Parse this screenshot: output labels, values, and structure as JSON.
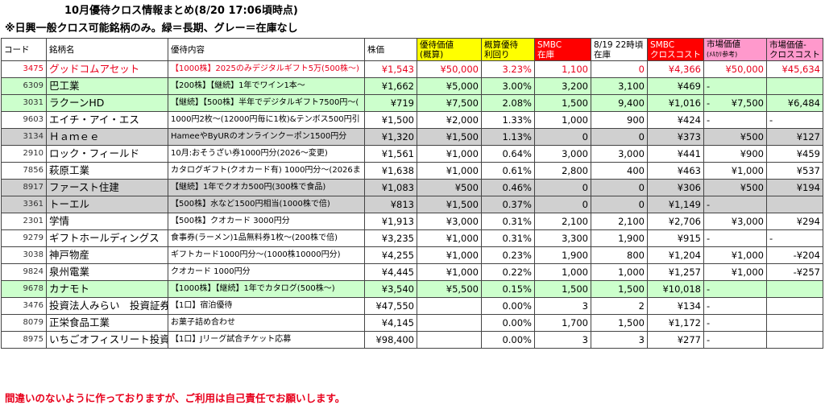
{
  "title": "10月優待クロス情報まとめ(8/20 17:06頃時点)",
  "subtitle": "※日興一般クロス可能銘柄のみ。緑＝長期、グレー＝在庫なし",
  "footer": "間違いのないように作っておりますが、ご利用は自己責任でお願いします。",
  "colors": {
    "green_row": "#ccffcc",
    "gray_row": "#d0d0d0",
    "yellow_header": "#ffff00",
    "red_header": "#ff0000",
    "pink_header": "#ff99cc",
    "red_text": "#e8001c"
  },
  "headers": {
    "code": "コード",
    "name": "銘柄名",
    "desc": "優待内容",
    "price": "株価",
    "value_l1": "優待価値",
    "value_l2": "(概算)",
    "yield_l1": "概算優待",
    "yield_l2": "利回り",
    "smbc_l1": "SMBC",
    "smbc_l2": "在庫",
    "stock0819_l1": "8/19 22時頃",
    "stock0819_l2": "在庫",
    "cost_l1": "SMBC",
    "cost_l2": "クロスコスト",
    "market_l1": "市場価値",
    "market_l2": "(ﾒﾙｶﾘ参考)",
    "diff_l1": "市場価値-",
    "diff_l2": "クロスコスト"
  },
  "rows": [
    {
      "style": "red",
      "code": "3475",
      "name": "グッドコムアセット",
      "desc": "【1000株】2025のみデジタルギフト5万(500株～)",
      "price": "¥1,543",
      "value": "¥50,000",
      "yield": "3.23%",
      "smbc": "1,100",
      "stock0819": "0",
      "cost": "¥4,366",
      "market": "¥50,000",
      "diff": "¥45,634"
    },
    {
      "style": "green",
      "code": "6309",
      "name": "巴工業",
      "desc": "【200株】【継続】1年でワイン1本～",
      "price": "¥1,662",
      "value": "¥5,000",
      "yield": "3.00%",
      "smbc": "3,200",
      "stock0819": "3,100",
      "cost": "¥469",
      "market": "-",
      "diff": ""
    },
    {
      "style": "green",
      "code": "3031",
      "name": "ラクーンHD",
      "desc": "【継続】【500株】半年でデジタルギフト7500円～(",
      "price": "¥719",
      "value": "¥7,500",
      "yield": "2.08%",
      "smbc": "1,500",
      "stock0819": "9,400",
      "cost": "¥1,016",
      "market": "-",
      "diff": "¥6,484",
      "market2": "¥7,500"
    },
    {
      "style": "",
      "code": "9603",
      "name": "エイチ・アイ・エス",
      "desc": "1000円2枚～(12000円毎に1枚)&テンボス500円引",
      "price": "¥1,500",
      "value": "¥2,000",
      "yield": "1.33%",
      "smbc": "1,000",
      "stock0819": "900",
      "cost": "¥424",
      "market": "-",
      "diff": "-"
    },
    {
      "style": "gray",
      "code": "3134",
      "name": "Ｈａｍｅｅ",
      "desc": "HameeやByURのオンラインクーポン1500円分",
      "price": "¥1,320",
      "value": "¥1,500",
      "yield": "1.13%",
      "smbc": "0",
      "stock0819": "0",
      "cost": "¥373",
      "market": "¥500",
      "diff": "¥127"
    },
    {
      "style": "",
      "code": "2910",
      "name": "ロック・フィールド",
      "desc": "10月:おそうざい券1000円分(2026～変更)",
      "price": "¥1,561",
      "value": "¥1,000",
      "yield": "0.64%",
      "smbc": "3,000",
      "stock0819": "3,000",
      "cost": "¥441",
      "market": "¥900",
      "diff": "¥459"
    },
    {
      "style": "",
      "code": "7856",
      "name": "萩原工業",
      "desc": "カタログギフト(クオカード有) 1000円分～(2026ま",
      "price": "¥1,638",
      "value": "¥1,000",
      "yield": "0.61%",
      "smbc": "2,800",
      "stock0819": "400",
      "cost": "¥463",
      "market": "¥1,000",
      "diff": "¥537"
    },
    {
      "style": "gray",
      "code": "8917",
      "name": "ファースト住建",
      "desc": "【継続】1年でクオカ500円(300株で食品)",
      "price": "¥1,083",
      "value": "¥500",
      "yield": "0.46%",
      "smbc": "0",
      "stock0819": "0",
      "cost": "¥306",
      "market": "¥500",
      "diff": "¥194"
    },
    {
      "style": "gray",
      "code": "3361",
      "name": "トーエル",
      "desc": "【500株】水など1500円相当(1000株で倍)",
      "price": "¥813",
      "value": "¥1,500",
      "yield": "0.37%",
      "smbc": "0",
      "stock0819": "0",
      "cost": "¥1,149",
      "market": "-",
      "diff": ""
    },
    {
      "style": "",
      "code": "2301",
      "name": "学情",
      "desc": "【500株】クオカード 3000円分",
      "price": "¥1,913",
      "value": "¥3,000",
      "yield": "0.31%",
      "smbc": "2,100",
      "stock0819": "2,100",
      "cost": "¥2,706",
      "market": "¥3,000",
      "diff": "¥294"
    },
    {
      "style": "",
      "code": "9279",
      "name": "ギフトホールディングス",
      "desc": "食事券(ラーメン)1品無料券1枚～(200株で倍)",
      "price": "¥3,235",
      "value": "¥1,000",
      "yield": "0.31%",
      "smbc": "3,300",
      "stock0819": "1,900",
      "cost": "¥915",
      "market": "-",
      "diff": "-"
    },
    {
      "style": "",
      "code": "3038",
      "name": "神戸物産",
      "desc": "ギフトカード1000円分～(1000株10000円分)",
      "price": "¥4,255",
      "value": "¥1,000",
      "yield": "0.23%",
      "smbc": "1,900",
      "stock0819": "800",
      "cost": "¥1,204",
      "market": "¥1,000",
      "diff": "-¥204"
    },
    {
      "style": "",
      "code": "9824",
      "name": "泉州電業",
      "desc": "クオカード 1000円分",
      "price": "¥4,445",
      "value": "¥1,000",
      "yield": "0.22%",
      "smbc": "1,000",
      "stock0819": "1,000",
      "cost": "¥1,257",
      "market": "¥1,000",
      "diff": "-¥257"
    },
    {
      "style": "green",
      "code": "9678",
      "name": "カナモト",
      "desc": "【1000株】【継続】1年でカタログ(500株～)",
      "price": "¥3,540",
      "value": "¥5,500",
      "yield": "0.15%",
      "smbc": "1,500",
      "stock0819": "1,500",
      "cost": "¥10,018",
      "market": "-",
      "diff": ""
    },
    {
      "style": "",
      "code": "3476",
      "name": "投資法人みらい　投資証券",
      "desc": "【1口】宿泊優待",
      "price": "¥47,550",
      "value": "",
      "yield": "0.00%",
      "smbc": "3",
      "stock0819": "2",
      "cost": "¥134",
      "market": "-",
      "diff": ""
    },
    {
      "style": "",
      "code": "8079",
      "name": "正栄食品工業",
      "desc": "お菓子詰め合わせ",
      "price": "¥4,145",
      "value": "",
      "yield": "0.00%",
      "smbc": "1,700",
      "stock0819": "1,500",
      "cost": "¥1,172",
      "market": "-",
      "diff": ""
    },
    {
      "style": "",
      "code": "8975",
      "name": "いちごオフィスリート投資法",
      "desc": "【1口】Jリーグ試合チケット応募",
      "price": "¥98,400",
      "value": "",
      "yield": "0.00%",
      "smbc": "3",
      "stock0819": "3",
      "cost": "¥277",
      "market": "-",
      "diff": ""
    }
  ]
}
